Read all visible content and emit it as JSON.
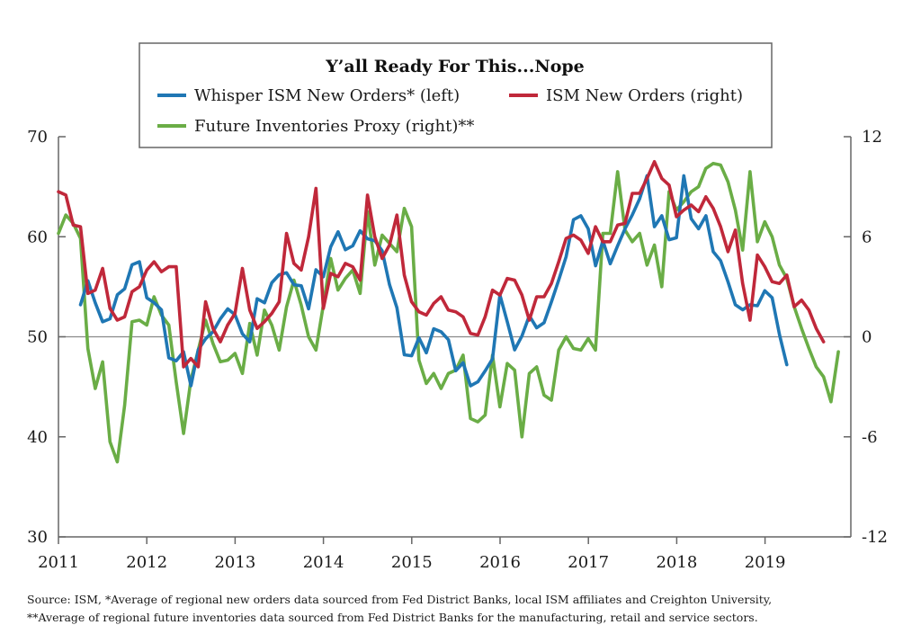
{
  "chart_data": {
    "type": "line",
    "title": "Y’all Ready For This...Nope",
    "x_tick_labels": [
      "2011",
      "2012",
      "2013",
      "2014",
      "2015",
      "2016",
      "2017",
      "2018",
      "2019"
    ],
    "x_range": [
      2011.0,
      2019.9
    ],
    "left_axis": {
      "range": [
        30,
        70
      ],
      "ticks": [
        "70",
        "60",
        "50",
        "40",
        "30"
      ],
      "tick_values": [
        70,
        60,
        50,
        40,
        30
      ]
    },
    "right_axis": {
      "range": [
        -12,
        12
      ],
      "ticks": [
        "12",
        "6",
        "0",
        "-6",
        "-12"
      ],
      "tick_values": [
        12,
        6,
        0,
        -6,
        -12
      ]
    },
    "zero_line": 0,
    "legend": {
      "whisper": "Whisper ISM New Orders* (left)",
      "ism": "ISM New Orders (right)",
      "future": "Future Inventories Proxy (right)**"
    },
    "colors": {
      "whisper": "#1f77b4",
      "ism": "#c0283a",
      "future": "#6aad46"
    },
    "series": [
      {
        "name": "Whisper ISM New Orders* (left)",
        "axis": "left",
        "key": "whisper",
        "x_start": 2011.25,
        "step": 0.0833,
        "values": [
          53.2,
          55.6,
          53.4,
          51.5,
          51.8,
          54.2,
          54.8,
          57.2,
          57.5,
          53.9,
          53.4,
          52.7,
          47.9,
          47.6,
          48.5,
          45.1,
          48.7,
          49.8,
          50.5,
          51.8,
          52.8,
          52.2,
          50.3,
          49.5,
          53.8,
          53.4,
          55.4,
          56.2,
          56.4,
          55.2,
          55.1,
          52.8,
          56.7,
          56.0,
          59.0,
          60.5,
          58.7,
          59.1,
          60.6,
          59.8,
          59.6,
          58.6,
          55.2,
          52.9,
          48.2,
          48.1,
          49.9,
          48.4,
          50.8,
          50.5,
          49.7,
          46.6,
          47.4,
          45.1,
          45.5,
          46.6,
          47.8,
          54.2,
          51.5,
          48.7,
          50.1,
          52.1,
          50.9,
          51.4,
          53.5,
          55.7,
          58.0,
          61.7,
          62.1,
          60.8,
          57.1,
          59.6,
          57.3,
          59.1,
          60.8,
          62.2,
          63.8,
          66.1,
          61.0,
          62.1,
          59.7,
          59.9,
          66.1,
          61.8,
          60.8,
          62.1,
          58.5,
          57.6,
          55.5,
          53.2,
          52.7,
          53.2,
          53.1,
          54.6,
          53.9,
          50.2,
          47.2
        ]
      },
      {
        "name": "ISM New Orders (right)",
        "axis": "right",
        "key": "ism",
        "x_start": 2011.0,
        "step": 0.0833,
        "values": [
          8.7,
          8.5,
          6.7,
          6.6,
          2.6,
          2.8,
          4.1,
          1.7,
          1.0,
          1.2,
          2.7,
          3.0,
          4.0,
          4.5,
          3.9,
          4.2,
          4.2,
          -1.8,
          -1.3,
          -1.8,
          2.1,
          0.5,
          -0.3,
          0.7,
          1.4,
          4.1,
          1.6,
          0.5,
          0.9,
          1.4,
          2.1,
          6.2,
          4.4,
          4.0,
          6.0,
          8.9,
          1.7,
          3.8,
          3.6,
          4.4,
          4.2,
          3.4,
          8.5,
          6.0,
          4.7,
          5.5,
          7.3,
          3.7,
          2.1,
          1.5,
          1.3,
          2.0,
          2.4,
          1.6,
          1.5,
          1.2,
          0.2,
          0.1,
          1.2,
          2.8,
          2.5,
          3.5,
          3.4,
          2.5,
          1.0,
          2.4,
          2.4,
          3.2,
          4.5,
          5.9,
          6.1,
          5.8,
          5.0,
          6.6,
          5.7,
          5.7,
          6.7,
          6.8,
          8.6,
          8.6,
          9.5,
          10.5,
          9.5,
          9.1,
          7.2,
          7.6,
          7.9,
          7.5,
          8.4,
          7.7,
          6.6,
          5.1,
          6.4,
          3.2,
          1.0,
          4.9,
          4.2,
          3.3,
          3.2,
          3.7,
          1.8,
          2.2,
          1.6,
          0.5,
          -0.3
        ]
      },
      {
        "name": "Future Inventories Proxy (right)**",
        "axis": "right",
        "key": "future",
        "x_start": 2011.0,
        "step": 0.0833,
        "values": [
          6.2,
          7.3,
          6.8,
          5.9,
          -0.7,
          -3.1,
          -1.5,
          -6.3,
          -7.5,
          -4.1,
          0.9,
          1.0,
          0.7,
          2.4,
          1.3,
          0.7,
          -2.7,
          -5.8,
          -2.6,
          -0.8,
          1.0,
          -0.4,
          -1.5,
          -1.4,
          -1.0,
          -2.2,
          0.8,
          -1.1,
          1.6,
          0.7,
          -0.8,
          1.8,
          3.4,
          1.9,
          0.0,
          -0.8,
          1.9,
          4.7,
          2.8,
          3.5,
          4.0,
          2.6,
          7.5,
          4.3,
          6.1,
          5.6,
          5.1,
          7.7,
          6.6,
          -1.4,
          -2.8,
          -2.2,
          -3.1,
          -2.2,
          -2.0,
          -1.1,
          -4.9,
          -5.1,
          -4.7,
          -1.1,
          -4.2,
          -1.6,
          -2.0,
          -6.0,
          -2.2,
          -1.8,
          -3.5,
          -3.8,
          -0.8,
          0.0,
          -0.7,
          -0.8,
          -0.1,
          -0.8,
          6.2,
          6.2,
          9.9,
          6.4,
          5.7,
          6.2,
          4.3,
          5.5,
          3.0,
          8.7,
          7.6,
          8.1,
          8.7,
          9.0,
          10.1,
          10.4,
          10.3,
          9.3,
          7.6,
          5.2,
          9.9,
          5.7,
          6.9,
          6.0,
          4.3,
          3.5,
          1.8,
          0.5,
          -0.7,
          -1.8,
          -2.4,
          -3.9,
          -0.9
        ]
      }
    ]
  },
  "source": {
    "line1": "Source:  ISM, *Average of regional new orders data sourced from Fed District Banks, local ISM affiliates and Creighton University,",
    "line2": "**Average of regional future inventories data sourced from Fed District Banks for the manufacturing, retail and service sectors."
  }
}
